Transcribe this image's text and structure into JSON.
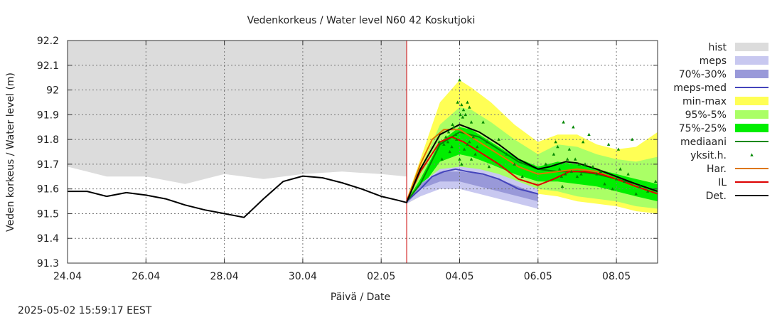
{
  "chart_data": {
    "type": "line",
    "title": "Vedenkorkeus / Water level   N60 42 Koskutjoki",
    "xlabel": "Päivä / Date",
    "ylabel": "Veden korkeus / Water level (m)",
    "ylim": [
      91.3,
      92.2
    ],
    "xlim_days": [
      0,
      15.05
    ],
    "x_ticks": [
      {
        "label": "24.04",
        "day": 0
      },
      {
        "label": "26.04",
        "day": 2
      },
      {
        "label": "28.04",
        "day": 4
      },
      {
        "label": "30.04",
        "day": 6
      },
      {
        "label": "02.05",
        "day": 8
      },
      {
        "label": "04.05",
        "day": 10
      },
      {
        "label": "06.05",
        "day": 12
      },
      {
        "label": "08.05",
        "day": 14
      }
    ],
    "y_ticks": [
      91.3,
      91.4,
      91.5,
      91.6,
      91.7,
      91.8,
      91.9,
      92,
      92.1,
      92.2
    ],
    "grid": true,
    "legend_placement": "right",
    "forecast_start_day": 8.65,
    "colors": {
      "hist": "#dcdcdc",
      "meps": "#c8c8f0",
      "p70_30": "#9999d9",
      "meps_med": "#4444bb",
      "minmax": "#ffff55",
      "p95_5": "#aaff66",
      "p75_25": "#00ee00",
      "mediaani": "#008800",
      "yksit": "#008800",
      "har": "#dd7700",
      "il": "#dd0000",
      "det": "#000000",
      "forecast_line": "#cc0000"
    },
    "legend": [
      {
        "key": "hist",
        "label": "hist",
        "kind": "box"
      },
      {
        "key": "meps",
        "label": "meps",
        "kind": "box"
      },
      {
        "key": "p70_30",
        "label": "70%-30%",
        "kind": "box"
      },
      {
        "key": "meps_med",
        "label": "meps-med",
        "kind": "line"
      },
      {
        "key": "minmax",
        "label": "min-max",
        "kind": "box"
      },
      {
        "key": "p95_5",
        "label": "95%-5%",
        "kind": "box"
      },
      {
        "key": "p75_25",
        "label": "75%-25%",
        "kind": "box"
      },
      {
        "key": "mediaani",
        "label": "mediaani",
        "kind": "line"
      },
      {
        "key": "yksit",
        "label": "yksit.h.",
        "kind": "dot"
      },
      {
        "key": "har",
        "label": "Har.",
        "kind": "line"
      },
      {
        "key": "il",
        "label": "IL",
        "kind": "line"
      },
      {
        "key": "det",
        "label": "Det.",
        "kind": "line"
      }
    ],
    "hist_upper": {
      "x": [
        0,
        0.5,
        1,
        1.5,
        2,
        3,
        4,
        5,
        5.5,
        6,
        7,
        8,
        8.65
      ],
      "y": [
        91.69,
        91.67,
        91.65,
        91.65,
        91.65,
        91.62,
        91.66,
        91.64,
        91.65,
        91.66,
        91.67,
        91.66,
        91.65
      ]
    },
    "minmax": {
      "x": [
        8.65,
        9,
        9.5,
        10,
        10.3,
        10.8,
        11.4,
        12,
        12.5,
        13,
        13.5,
        14,
        14.5,
        15.05
      ],
      "hi": [
        91.56,
        91.72,
        91.95,
        92.04,
        92.01,
        91.95,
        91.86,
        91.79,
        91.82,
        91.82,
        91.78,
        91.76,
        91.77,
        91.83
      ],
      "lo": [
        91.54,
        91.57,
        91.63,
        91.65,
        91.65,
        91.63,
        91.61,
        91.58,
        91.57,
        91.55,
        91.54,
        91.53,
        91.51,
        91.5
      ]
    },
    "p95_5": {
      "x": [
        8.65,
        9,
        9.5,
        10,
        10.3,
        10.8,
        11.4,
        12,
        12.5,
        13,
        13.5,
        14,
        14.5,
        15.05
      ],
      "hi": [
        91.56,
        91.68,
        91.86,
        91.93,
        91.92,
        91.87,
        91.8,
        91.74,
        91.78,
        91.77,
        91.74,
        91.72,
        91.71,
        91.73
      ],
      "lo": [
        91.54,
        91.58,
        91.66,
        91.68,
        91.68,
        91.66,
        91.63,
        91.6,
        91.59,
        91.57,
        91.56,
        91.55,
        91.53,
        91.52
      ]
    },
    "p75_25": {
      "x": [
        8.65,
        9,
        9.5,
        10,
        10.3,
        10.8,
        11.4,
        12,
        12.5,
        13,
        13.5,
        14,
        14.5,
        15.05
      ],
      "hi": [
        91.55,
        91.64,
        91.79,
        91.85,
        91.84,
        91.79,
        91.73,
        91.69,
        91.71,
        91.7,
        91.68,
        91.66,
        91.64,
        91.62
      ],
      "lo": [
        91.54,
        91.6,
        91.71,
        91.74,
        91.73,
        91.7,
        91.66,
        91.63,
        91.63,
        91.62,
        91.61,
        91.59,
        91.57,
        91.55
      ]
    },
    "meps_band": {
      "x": [
        8.65,
        9,
        9.5,
        10,
        10.5,
        11,
        11.5,
        12
      ],
      "hi": [
        91.55,
        91.62,
        91.68,
        91.69,
        91.68,
        91.66,
        91.63,
        91.6
      ],
      "lo": [
        91.54,
        91.57,
        91.6,
        91.6,
        91.58,
        91.56,
        91.54,
        91.52
      ]
    },
    "p70_30_band": {
      "x": [
        8.65,
        9,
        9.5,
        10,
        10.5,
        11,
        11.5,
        12
      ],
      "hi": [
        91.55,
        91.62,
        91.67,
        91.67,
        91.66,
        91.64,
        91.61,
        91.58
      ],
      "lo": [
        91.54,
        91.6,
        91.63,
        91.63,
        91.61,
        91.59,
        91.57,
        91.55
      ]
    },
    "meps_med": {
      "x": [
        8.65,
        9,
        9.3,
        9.6,
        9.9,
        10.2,
        10.6,
        11,
        11.5,
        12
      ],
      "y": [
        91.55,
        91.6,
        91.65,
        91.67,
        91.68,
        91.67,
        91.66,
        91.64,
        91.6,
        91.58
      ]
    },
    "det": {
      "x": [
        0,
        0.5,
        1,
        1.5,
        2,
        2.5,
        3,
        3.5,
        4,
        4.5,
        5,
        5.5,
        6,
        6.5,
        7,
        7.5,
        8,
        8.4,
        8.65,
        9,
        9.5,
        10,
        10.5,
        11,
        11.5,
        12,
        12.3,
        12.7,
        13,
        13.5,
        14,
        14.5,
        15.05
      ],
      "y": [
        91.59,
        91.59,
        91.57,
        91.585,
        91.575,
        91.56,
        91.535,
        91.515,
        91.5,
        91.485,
        91.56,
        91.63,
        91.652,
        91.645,
        91.625,
        91.6,
        91.57,
        91.555,
        91.545,
        91.68,
        91.82,
        91.86,
        91.83,
        91.78,
        91.72,
        91.68,
        91.69,
        91.71,
        91.705,
        91.68,
        91.65,
        91.62,
        91.59
      ]
    },
    "mediaani": {
      "x": [
        8.65,
        9,
        9.5,
        10,
        10.5,
        11,
        11.5,
        12,
        12.5,
        13,
        13.5,
        14,
        14.5,
        15.05
      ],
      "y": [
        91.55,
        91.62,
        91.78,
        91.83,
        91.81,
        91.76,
        91.71,
        91.68,
        91.67,
        91.67,
        91.66,
        91.64,
        91.62,
        91.59
      ]
    },
    "har": {
      "x": [
        8.65,
        9,
        9.3,
        9.6,
        10,
        10.3,
        10.6,
        11,
        11.5,
        12,
        12.5,
        13,
        13.5,
        14,
        14.5,
        15.05
      ],
      "y": [
        91.55,
        91.7,
        91.8,
        91.84,
        91.84,
        91.81,
        91.78,
        91.74,
        91.69,
        91.66,
        91.67,
        91.68,
        91.67,
        91.64,
        91.61,
        91.58
      ]
    },
    "il": {
      "x": [
        8.65,
        9,
        9.5,
        9.8,
        10.1,
        10.5,
        11,
        11.5,
        12,
        12.4,
        12.8,
        13.2,
        13.6,
        14,
        14.5,
        15.05
      ],
      "y": [
        91.55,
        91.67,
        91.79,
        91.81,
        91.79,
        91.75,
        91.7,
        91.64,
        91.615,
        91.64,
        91.67,
        91.67,
        91.66,
        91.64,
        91.61,
        91.58
      ]
    },
    "yksit": [
      {
        "x": 9.48,
        "y": 91.79
      },
      {
        "x": 9.55,
        "y": 91.72
      },
      {
        "x": 9.6,
        "y": 91.78
      },
      {
        "x": 9.65,
        "y": 91.81
      },
      {
        "x": 9.72,
        "y": 91.83
      },
      {
        "x": 9.75,
        "y": 91.75
      },
      {
        "x": 9.8,
        "y": 91.77
      },
      {
        "x": 9.82,
        "y": 91.86
      },
      {
        "x": 9.85,
        "y": 91.85
      },
      {
        "x": 9.9,
        "y": 91.82
      },
      {
        "x": 9.95,
        "y": 91.95
      },
      {
        "x": 10.0,
        "y": 92.04
      },
      {
        "x": 10.02,
        "y": 91.9
      },
      {
        "x": 10.05,
        "y": 91.94
      },
      {
        "x": 10.08,
        "y": 91.89
      },
      {
        "x": 10.1,
        "y": 91.92
      },
      {
        "x": 10.15,
        "y": 91.9
      },
      {
        "x": 10.2,
        "y": 91.95
      },
      {
        "x": 10.25,
        "y": 91.93
      },
      {
        "x": 10.3,
        "y": 91.87
      },
      {
        "x": 9.7,
        "y": 91.79
      },
      {
        "x": 9.92,
        "y": 91.8
      },
      {
        "x": 10.0,
        "y": 91.72
      },
      {
        "x": 10.05,
        "y": 91.7
      },
      {
        "x": 10.12,
        "y": 91.76
      },
      {
        "x": 10.2,
        "y": 91.78
      },
      {
        "x": 10.25,
        "y": 91.79
      },
      {
        "x": 10.3,
        "y": 91.72
      },
      {
        "x": 10.35,
        "y": 91.81
      },
      {
        "x": 10.4,
        "y": 91.74
      },
      {
        "x": 10.45,
        "y": 91.77
      },
      {
        "x": 10.6,
        "y": 91.87
      },
      {
        "x": 10.7,
        "y": 91.79
      },
      {
        "x": 10.75,
        "y": 91.69
      },
      {
        "x": 11.0,
        "y": 91.8
      },
      {
        "x": 11.2,
        "y": 91.74
      },
      {
        "x": 11.4,
        "y": 91.7
      },
      {
        "x": 11.6,
        "y": 91.65
      },
      {
        "x": 12.2,
        "y": 91.7
      },
      {
        "x": 12.4,
        "y": 91.74
      },
      {
        "x": 12.45,
        "y": 91.79
      },
      {
        "x": 12.5,
        "y": 91.77
      },
      {
        "x": 12.55,
        "y": 91.68
      },
      {
        "x": 12.6,
        "y": 91.65
      },
      {
        "x": 12.62,
        "y": 91.61
      },
      {
        "x": 12.65,
        "y": 91.87
      },
      {
        "x": 12.7,
        "y": 91.66
      },
      {
        "x": 12.75,
        "y": 91.72
      },
      {
        "x": 12.8,
        "y": 91.76
      },
      {
        "x": 12.85,
        "y": 91.67
      },
      {
        "x": 12.9,
        "y": 91.85
      },
      {
        "x": 12.95,
        "y": 91.72
      },
      {
        "x": 13.0,
        "y": 91.65
      },
      {
        "x": 13.05,
        "y": 91.7
      },
      {
        "x": 13.1,
        "y": 91.66
      },
      {
        "x": 13.15,
        "y": 91.79
      },
      {
        "x": 13.2,
        "y": 91.7
      },
      {
        "x": 13.3,
        "y": 91.82
      },
      {
        "x": 13.4,
        "y": 91.69
      },
      {
        "x": 13.5,
        "y": 91.66
      },
      {
        "x": 13.6,
        "y": 91.67
      },
      {
        "x": 13.7,
        "y": 91.62
      },
      {
        "x": 13.8,
        "y": 91.78
      },
      {
        "x": 13.9,
        "y": 91.6
      },
      {
        "x": 14.0,
        "y": 91.64
      },
      {
        "x": 14.05,
        "y": 91.76
      },
      {
        "x": 14.1,
        "y": 91.68
      },
      {
        "x": 14.2,
        "y": 91.63
      },
      {
        "x": 14.3,
        "y": 91.66
      },
      {
        "x": 14.4,
        "y": 91.8
      },
      {
        "x": 14.5,
        "y": 91.58
      },
      {
        "x": 14.6,
        "y": 91.61
      },
      {
        "x": 14.8,
        "y": 91.59
      },
      {
        "x": 15.0,
        "y": 91.63
      }
    ]
  },
  "footer": {
    "timestamp": "2025-05-02 15:59:17 EEST"
  }
}
